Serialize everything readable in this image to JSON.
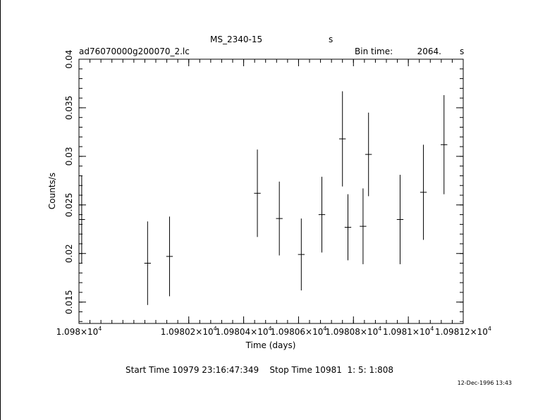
{
  "header": {
    "object": "MS_2340-15",
    "object_unit": "s",
    "file": "ad76070000g200070_2.lc",
    "bin_label": "Bin time:",
    "bin_value": "2064.",
    "bin_unit": "s"
  },
  "footer": {
    "times": "Start Time 10979 23:16:47:349    Stop Time 10981  1: 5: 1:808",
    "stamp": "12-Dec-1996 13:43"
  },
  "chart_data": {
    "type": "scatter",
    "xlabel": "Time (days)",
    "ylabel": "Counts/s",
    "xlim": [
      10979.8,
      10981.2
    ],
    "ylim": [
      0.0128,
      0.04
    ],
    "x_ticks": [
      {
        "value": 10979.8,
        "mantissa": "1.098",
        "exp": "4"
      },
      {
        "value": 10980.2,
        "mantissa": "1.09802",
        "exp": "4"
      },
      {
        "value": 10980.4,
        "mantissa": "1.09804",
        "exp": "4"
      },
      {
        "value": 10980.6,
        "mantissa": "1.09806",
        "exp": "4"
      },
      {
        "value": 10980.8,
        "mantissa": "1.09808",
        "exp": "4"
      },
      {
        "value": 10981.0,
        "mantissa": "1.0981",
        "exp": "4"
      },
      {
        "value": 10981.2,
        "mantissa": "1.09812",
        "exp": "4"
      }
    ],
    "y_ticks": [
      {
        "value": 0.015,
        "label": "0.015"
      },
      {
        "value": 0.02,
        "label": "0.02"
      },
      {
        "value": 0.025,
        "label": "0.025"
      },
      {
        "value": 0.03,
        "label": "0.03"
      },
      {
        "value": 0.035,
        "label": "0.035"
      },
      {
        "value": 0.04,
        "label": "0.04"
      }
    ],
    "points": [
      {
        "x": 10979.81,
        "y": 0.0235,
        "xerr": 0.012,
        "yerr": 0.0045
      },
      {
        "x": 10980.05,
        "y": 0.019,
        "xerr": 0.012,
        "yerr": 0.0043
      },
      {
        "x": 10980.13,
        "y": 0.0197,
        "xerr": 0.012,
        "yerr": 0.0041
      },
      {
        "x": 10980.45,
        "y": 0.0262,
        "xerr": 0.012,
        "yerr": 0.0045
      },
      {
        "x": 10980.53,
        "y": 0.0236,
        "xerr": 0.012,
        "yerr": 0.0038
      },
      {
        "x": 10980.61,
        "y": 0.0199,
        "xerr": 0.012,
        "yerr": 0.0037
      },
      {
        "x": 10980.685,
        "y": 0.024,
        "xerr": 0.012,
        "yerr": 0.0039
      },
      {
        "x": 10980.76,
        "y": 0.0318,
        "xerr": 0.012,
        "yerr": 0.0049
      },
      {
        "x": 10980.78,
        "y": 0.0227,
        "xerr": 0.012,
        "yerr": 0.0034
      },
      {
        "x": 10980.835,
        "y": 0.0228,
        "xerr": 0.012,
        "yerr": 0.0039
      },
      {
        "x": 10980.855,
        "y": 0.0302,
        "xerr": 0.012,
        "yerr": 0.0043
      },
      {
        "x": 10980.97,
        "y": 0.0235,
        "xerr": 0.012,
        "yerr": 0.0046
      },
      {
        "x": 10981.055,
        "y": 0.0263,
        "xerr": 0.012,
        "yerr": 0.0049
      },
      {
        "x": 10981.13,
        "y": 0.0312,
        "xerr": 0.012,
        "yerr": 0.0051
      }
    ]
  }
}
